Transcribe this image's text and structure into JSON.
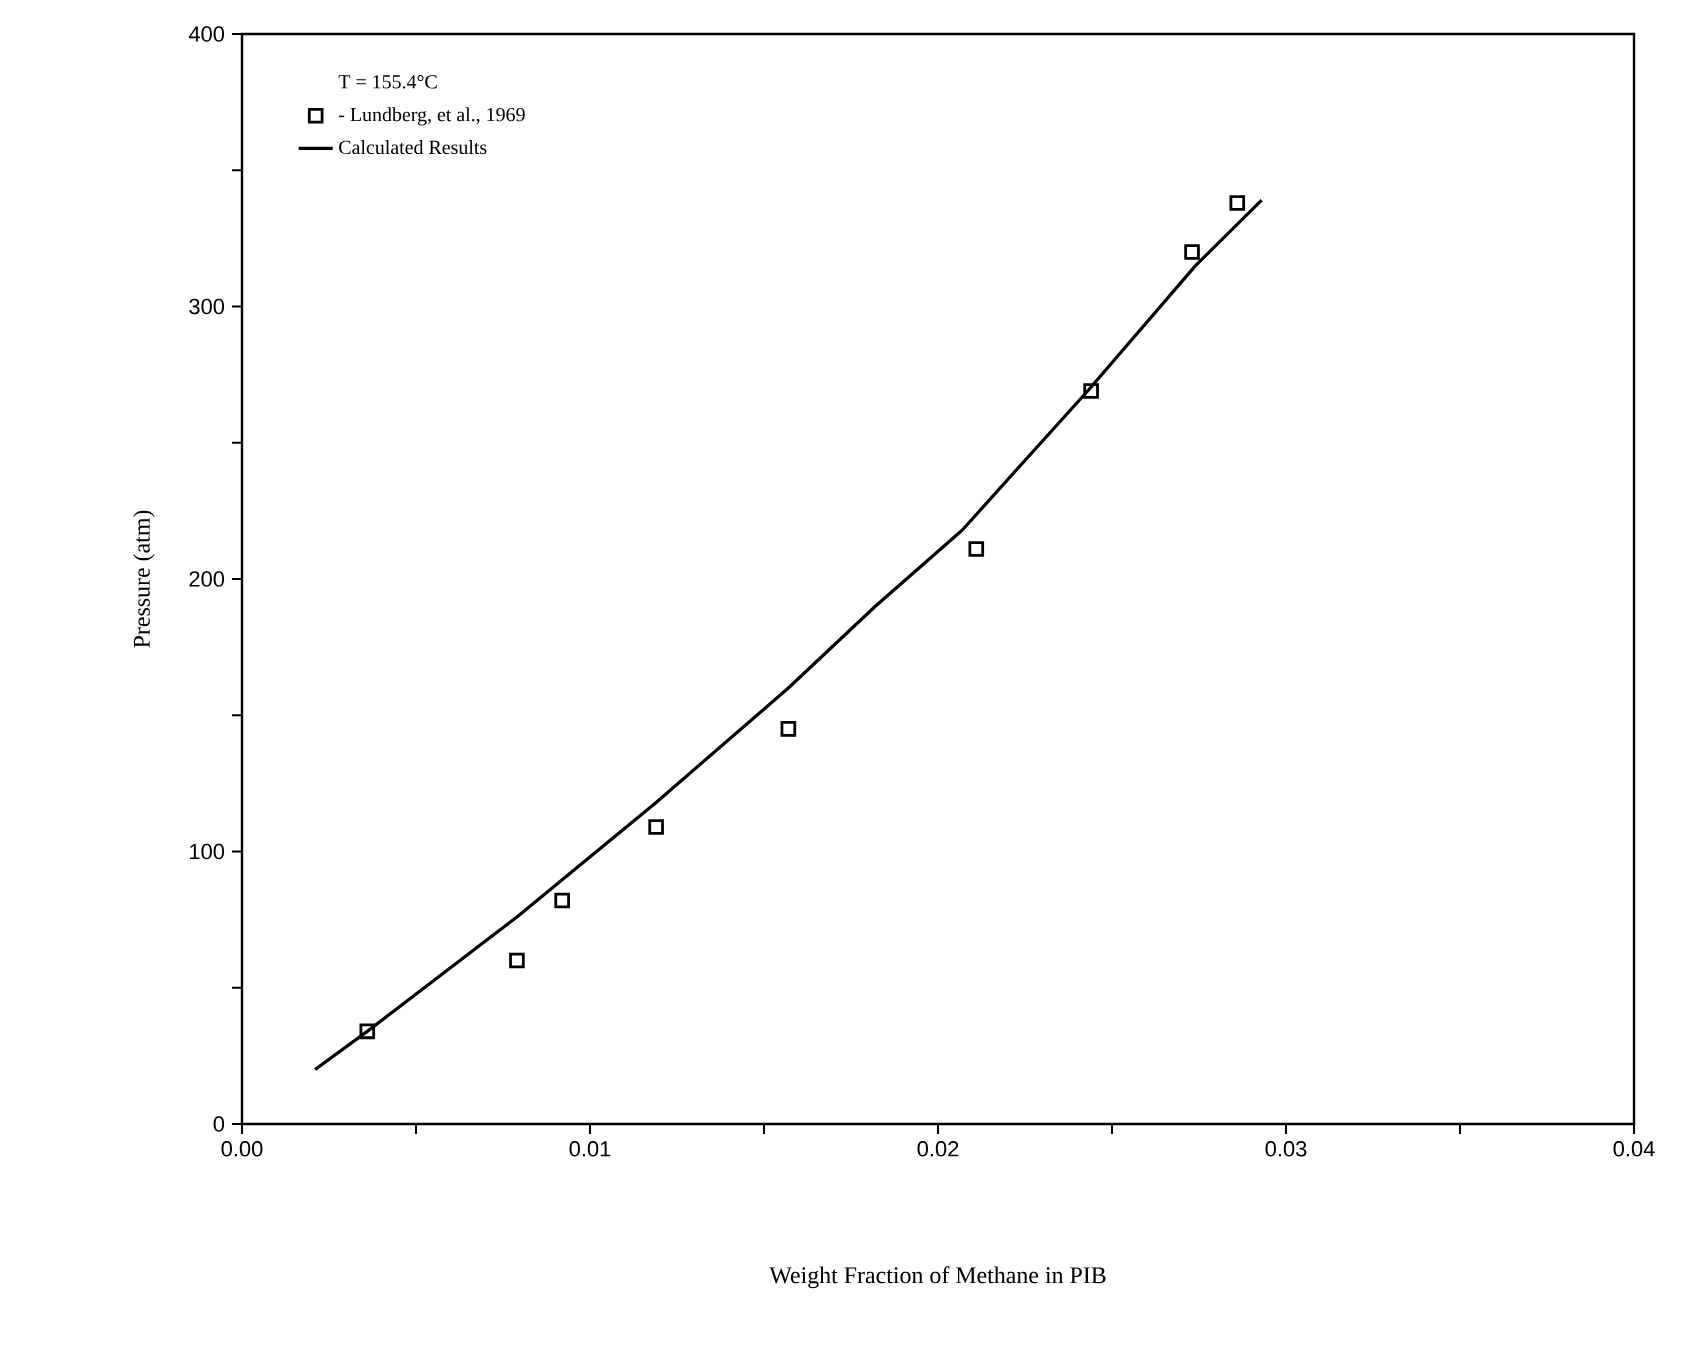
{
  "chart_data": {
    "type": "scatter",
    "xlabel": "Weight Fraction of Methane in PIB",
    "ylabel": "Pressure  (atm)",
    "legend_title": "T = 155.4°C",
    "series": [
      {
        "name": "- Lundberg, et al., 1969",
        "color": "#000000",
        "marker": "square",
        "x": [
          0.0036,
          0.0079,
          0.0092,
          0.0119,
          0.0157,
          0.0211,
          0.0244,
          0.0273,
          0.0286
        ],
        "values": [
          34,
          60,
          82,
          109,
          145,
          211,
          269,
          320,
          338
        ]
      },
      {
        "name": "Calculated Results",
        "type": "line",
        "color": "#000000",
        "marker": "none",
        "line_style": "solid",
        "x": [
          0.0021,
          0.0036,
          0.0079,
          0.0119,
          0.0157,
          0.0182,
          0.0207,
          0.0243,
          0.0274,
          0.0293
        ],
        "values": [
          20,
          34,
          76,
          118,
          160,
          190,
          218,
          269,
          315,
          339
        ]
      }
    ],
    "xlim": [
      0,
      0.04
    ],
    "ylim": [
      0,
      400
    ],
    "xticks": [
      {
        "value": 0,
        "label": "0.00"
      },
      {
        "value": 0.005,
        "label": null
      },
      {
        "value": 0.01,
        "label": "0.01"
      },
      {
        "value": 0.015,
        "label": null
      },
      {
        "value": 0.02,
        "label": "0.02"
      },
      {
        "value": 0.025,
        "label": null
      },
      {
        "value": 0.03,
        "label": "0.03"
      },
      {
        "value": 0.035,
        "label": null
      },
      {
        "value": 0.04,
        "label": "0.04"
      }
    ],
    "yticks": [
      0,
      {
        "value": 50,
        "label": null
      },
      100,
      {
        "value": 150,
        "label": null
      },
      200,
      {
        "value": 250,
        "label": null
      },
      300,
      {
        "value": 350,
        "label": null
      },
      400
    ],
    "grid": false,
    "legend": "top left"
  }
}
